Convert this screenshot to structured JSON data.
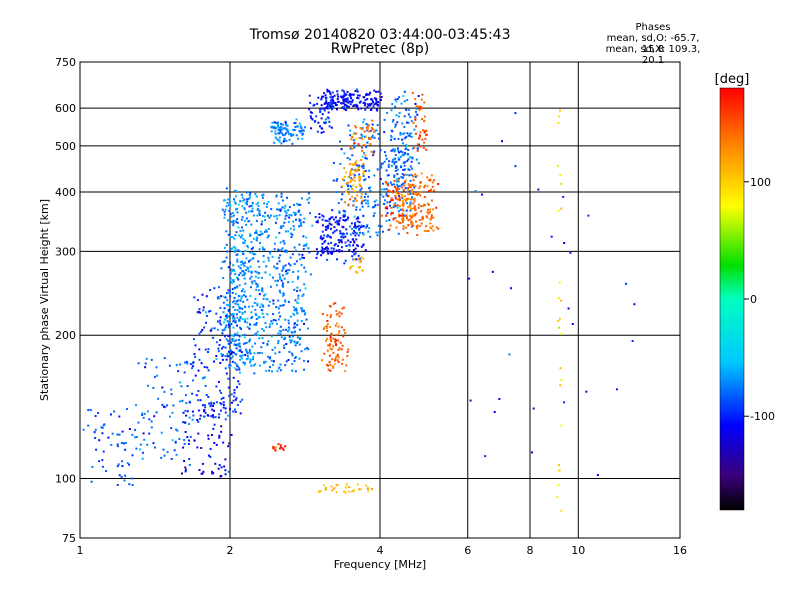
{
  "chart_data": {
    "type": "scatter",
    "title": "Tromsø 20140820 03:44:00-03:45:43",
    "subtitle": "RwPretec (8p)",
    "xlabel": "Frequency [MHz]",
    "ylabel": "Stationary phase Virtual Height [km]",
    "x_scale": "log",
    "y_scale": "log",
    "xlim": [
      1,
      16
    ],
    "ylim": [
      75,
      750
    ],
    "x_ticks": [
      1,
      2,
      4,
      6,
      8,
      10,
      16
    ],
    "x_tick_labels": [
      "1",
      "2",
      "4",
      "6",
      "8",
      "10",
      "16"
    ],
    "y_ticks": [
      75,
      100,
      200,
      300,
      400,
      500,
      600,
      750
    ],
    "y_tick_labels": [
      "75",
      "100",
      "200",
      "300",
      "400",
      "500",
      "600",
      "750"
    ],
    "grid": true,
    "legend": {
      "heading": "Phases",
      "line1": "mean, sd,O: -65.7, 15.8",
      "line2": "mean, sd,X: 109.3, 20.1"
    },
    "colorbar": {
      "label": "[deg]",
      "range": [
        -180,
        180
      ],
      "ticks": [
        100,
        0,
        -100
      ],
      "tick_labels": [
        "100",
        "0",
        "-100"
      ]
    },
    "series": [
      {
        "f0": 1.02,
        "f1": 1.3,
        "h0": 96,
        "h1": 140,
        "phase": -85,
        "count": 60,
        "spread": 0.03
      },
      {
        "f0": 1.3,
        "f1": 1.7,
        "h0": 110,
        "h1": 180,
        "phase": -80,
        "count": 90,
        "spread": 0.03
      },
      {
        "f0": 1.6,
        "f1": 2.0,
        "h0": 100,
        "h1": 140,
        "phase": -115,
        "count": 70,
        "spread": 0.03
      },
      {
        "f0": 1.7,
        "f1": 2.1,
        "h0": 130,
        "h1": 250,
        "phase": -95,
        "count": 180,
        "spread": 0.05
      },
      {
        "f0": 1.95,
        "f1": 2.2,
        "h0": 170,
        "h1": 400,
        "phase": -70,
        "count": 340,
        "spread": 0.06
      },
      {
        "f0": 2.2,
        "f1": 2.4,
        "h0": 170,
        "h1": 400,
        "phase": -70,
        "count": 180,
        "spread": 0.06
      },
      {
        "f0": 2.45,
        "f1": 2.85,
        "h0": 170,
        "h1": 400,
        "phase": -75,
        "count": 300,
        "spread": 0.07
      },
      {
        "f0": 2.4,
        "f1": 2.8,
        "h0": 510,
        "h1": 560,
        "phase": -72,
        "count": 90,
        "spread": 0.03
      },
      {
        "f0": 2.9,
        "f1": 3.2,
        "h0": 530,
        "h1": 640,
        "phase": -100,
        "count": 50,
        "spread": 0.04
      },
      {
        "f0": 3.1,
        "f1": 4.0,
        "h0": 600,
        "h1": 650,
        "phase": -110,
        "count": 160,
        "spread": 0.03
      },
      {
        "f0": 3.0,
        "f1": 3.7,
        "h0": 290,
        "h1": 360,
        "phase": -105,
        "count": 180,
        "spread": 0.05
      },
      {
        "f0": 3.3,
        "f1": 4.6,
        "h0": 330,
        "h1": 560,
        "phase": -80,
        "count": 260,
        "spread": 0.07
      },
      {
        "f0": 4.2,
        "f1": 4.7,
        "h0": 400,
        "h1": 650,
        "phase": -80,
        "count": 120,
        "spread": 0.05
      },
      {
        "f0": 3.4,
        "f1": 3.7,
        "h0": 380,
        "h1": 460,
        "phase": 120,
        "count": 60,
        "spread": 0.04
      },
      {
        "f0": 3.5,
        "f1": 3.9,
        "h0": 480,
        "h1": 560,
        "phase": 135,
        "count": 40,
        "spread": 0.03
      },
      {
        "f0": 4.1,
        "f1": 4.4,
        "h0": 340,
        "h1": 420,
        "phase": 155,
        "count": 40,
        "spread": 0.04
      },
      {
        "f0": 4.4,
        "f1": 5.1,
        "h0": 330,
        "h1": 430,
        "phase": 140,
        "count": 180,
        "spread": 0.06
      },
      {
        "f0": 4.7,
        "f1": 5.0,
        "h0": 480,
        "h1": 640,
        "phase": 150,
        "count": 40,
        "spread": 0.04
      },
      {
        "f0": 3.1,
        "f1": 3.4,
        "h0": 170,
        "h1": 230,
        "phase": 145,
        "count": 90,
        "spread": 0.04
      },
      {
        "f0": 3.5,
        "f1": 3.75,
        "h0": 270,
        "h1": 290,
        "phase": 110,
        "count": 15,
        "spread": 0.02
      },
      {
        "f0": 2.4,
        "f1": 2.6,
        "h0": 114,
        "h1": 118,
        "phase": 165,
        "count": 14,
        "spread": 0.01
      },
      {
        "f0": 3.0,
        "f1": 3.9,
        "h0": 93,
        "h1": 97,
        "phase": 110,
        "count": 30,
        "spread": 0.01
      },
      {
        "f0": 9.1,
        "f1": 9.25,
        "h0": 80,
        "h1": 620,
        "phase": 95,
        "count": 25,
        "spread": 0.01
      },
      {
        "f0": 6.0,
        "f1": 13.0,
        "h0": 90,
        "h1": 600,
        "phase": -110,
        "count": 30,
        "spread": 0.02
      }
    ]
  }
}
